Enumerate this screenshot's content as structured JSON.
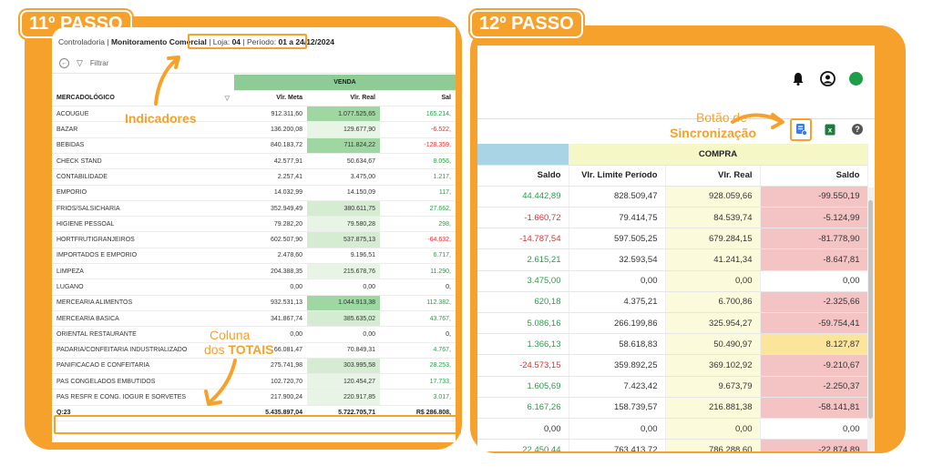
{
  "left": {
    "step_label": "11º PASSO",
    "breadcrumb": {
      "section": "Controladoria",
      "sep": " | ",
      "module": "Monitoramento Comercial",
      "store_label": "Loja: ",
      "store_value": "04",
      "period_label": "Período: ",
      "period_value": "01 a 24/12/2024"
    },
    "filter_label": "Filtrar",
    "group_header": "VENDA",
    "columns": [
      "MERCADOLÓGICO",
      "Vlr. Meta",
      "Vlr. Real",
      "Sal"
    ],
    "rows": [
      {
        "name": "ACOUGUE",
        "meta": "912.311,60",
        "real": "1.077.525,65",
        "saldo": "165.214,",
        "real_shade": 1,
        "saldo_color": "green"
      },
      {
        "name": "BAZAR",
        "meta": "136.200,08",
        "real": "129.677,90",
        "saldo": "-6.522,",
        "real_shade": 3,
        "saldo_color": "red"
      },
      {
        "name": "BEBIDAS",
        "meta": "840.183,72",
        "real": "711.824,22",
        "saldo": "-128.359,",
        "real_shade": 1,
        "saldo_color": "red"
      },
      {
        "name": "CHECK STAND",
        "meta": "42.577,91",
        "real": "50.634,67",
        "saldo": "8.056,",
        "real_shade": 0,
        "saldo_color": "green"
      },
      {
        "name": "CONTABILIDADE",
        "meta": "2.257,41",
        "real": "3.475,00",
        "saldo": "1.217,",
        "real_shade": 0,
        "saldo_color": "green"
      },
      {
        "name": "EMPORIO",
        "meta": "14.032,99",
        "real": "14.150,09",
        "saldo": "117,",
        "real_shade": 0,
        "saldo_color": "green"
      },
      {
        "name": "FRIOS/SALSICHARIA",
        "meta": "352.949,49",
        "real": "380.611,75",
        "saldo": "27.662,",
        "real_shade": 2,
        "saldo_color": "green"
      },
      {
        "name": "HIGIENE PESSOAL",
        "meta": "79.282,20",
        "real": "79.580,28",
        "saldo": "298,",
        "real_shade": 3,
        "saldo_color": "green"
      },
      {
        "name": "HORTFRUTIGRANJEIROS",
        "meta": "602.507,90",
        "real": "537.875,13",
        "saldo": "-64.632,",
        "real_shade": 2,
        "saldo_color": "red"
      },
      {
        "name": "IMPORTADOS E EMPORIO",
        "meta": "2.478,60",
        "real": "9.196,51",
        "saldo": "6.717,",
        "real_shade": 0,
        "saldo_color": "green"
      },
      {
        "name": "LIMPEZA",
        "meta": "204.388,35",
        "real": "215.678,76",
        "saldo": "11.290,",
        "real_shade": 3,
        "saldo_color": "green"
      },
      {
        "name": "LUGANO",
        "meta": "0,00",
        "real": "0,00",
        "saldo": "0,",
        "real_shade": 0,
        "saldo_color": "none"
      },
      {
        "name": "MERCEARIA ALIMENTOS",
        "meta": "932.531,13",
        "real": "1.044.913,38",
        "saldo": "112.382,",
        "real_shade": 1,
        "saldo_color": "green"
      },
      {
        "name": "MERCEARIA BASICA",
        "meta": "341.867,74",
        "real": "385.635,02",
        "saldo": "43.767,",
        "real_shade": 2,
        "saldo_color": "green"
      },
      {
        "name": "ORIENTAL RESTAURANTE",
        "meta": "0,00",
        "real": "0,00",
        "saldo": "0,",
        "real_shade": 0,
        "saldo_color": "none"
      },
      {
        "name": "PADARIA/CONFEITARIA INDUSTRIALIZADO",
        "meta": "66.081,47",
        "real": "70.849,31",
        "saldo": "4.767,",
        "real_shade": 0,
        "saldo_color": "green"
      },
      {
        "name": "PANIFICACAO E CONFEITARIA",
        "meta": "275.741,98",
        "real": "303.995,58",
        "saldo": "28.253,",
        "real_shade": 2,
        "saldo_color": "green"
      },
      {
        "name": "PAS CONGELADOS EMBUTIDOS",
        "meta": "102.720,70",
        "real": "120.454,27",
        "saldo": "17.733,",
        "real_shade": 3,
        "saldo_color": "green"
      },
      {
        "name": "PAS RESFR E CONG. IOGUR E SORVETES",
        "meta": "217.900,24",
        "real": "220.917,85",
        "saldo": "3.017,",
        "real_shade": 3,
        "saldo_color": "green"
      }
    ],
    "total": {
      "label": "Q:23",
      "meta": "5.435.897,04",
      "real": "5.722.705,71",
      "saldo": "R$ 286.808,"
    },
    "annotations": {
      "indicadores": "Indicadores",
      "coluna_line1": "Coluna",
      "coluna_line2_pre": "dos ",
      "coluna_line2_bold": "TOTAIS"
    }
  },
  "right": {
    "step_label": "12º PASSO",
    "annotation_line1": "Botão de",
    "annotation_line2": "Sincronização",
    "group_header": "COMPRA",
    "columns": [
      "Saldo",
      "Vlr. Limite Período",
      "Vlr. Real",
      "Saldo"
    ],
    "rows": [
      {
        "saldo_venda": "44.442,89",
        "sv_color": "green",
        "limite": "828.509,47",
        "real": "928.059,66",
        "saldo": "-99.550,19",
        "s_bg": "pink"
      },
      {
        "saldo_venda": "-1.660,72",
        "sv_color": "red",
        "limite": "79.414,75",
        "real": "84.539,74",
        "saldo": "-5.124,99",
        "s_bg": "pink"
      },
      {
        "saldo_venda": "-14.787,54",
        "sv_color": "red",
        "limite": "597.505,25",
        "real": "679.284,15",
        "saldo": "-81.778,90",
        "s_bg": "pink"
      },
      {
        "saldo_venda": "2.615,21",
        "sv_color": "green",
        "limite": "32.593,54",
        "real": "41.241,34",
        "saldo": "-8.647,81",
        "s_bg": "pink"
      },
      {
        "saldo_venda": "3.475,00",
        "sv_color": "green",
        "limite": "0,00",
        "real": "0,00",
        "saldo": "0,00",
        "s_bg": "none"
      },
      {
        "saldo_venda": "620,18",
        "sv_color": "green",
        "limite": "4.375,21",
        "real": "6.700,86",
        "saldo": "-2.325,66",
        "s_bg": "pink"
      },
      {
        "saldo_venda": "5.086,16",
        "sv_color": "green",
        "limite": "266.199,86",
        "real": "325.954,27",
        "saldo": "-59.754,41",
        "s_bg": "pink"
      },
      {
        "saldo_venda": "1.366,13",
        "sv_color": "green",
        "limite": "58.618,83",
        "real": "50.490,97",
        "saldo": "8.127,87",
        "s_bg": "yellow"
      },
      {
        "saldo_venda": "-24.573,15",
        "sv_color": "red",
        "limite": "359.892,25",
        "real": "369.102,92",
        "saldo": "-9.210,67",
        "s_bg": "pink"
      },
      {
        "saldo_venda": "1.605,69",
        "sv_color": "green",
        "limite": "7.423,42",
        "real": "9.673,79",
        "saldo": "-2.250,37",
        "s_bg": "pink"
      },
      {
        "saldo_venda": "6.167,26",
        "sv_color": "green",
        "limite": "158.739,57",
        "real": "216.881,38",
        "saldo": "-58.141,81",
        "s_bg": "pink"
      },
      {
        "saldo_venda": "0,00",
        "sv_color": "none",
        "limite": "0,00",
        "real": "0,00",
        "saldo": "0,00",
        "s_bg": "none"
      },
      {
        "saldo_venda": "22.450,44",
        "sv_color": "green",
        "limite": "763.413,72",
        "real": "786.288,60",
        "saldo": "-22.874,89",
        "s_bg": "pink"
      }
    ],
    "icons": [
      "bell-icon",
      "user-circle-icon",
      "status-dot-icon",
      "sync-icon",
      "excel-icon",
      "help-icon"
    ],
    "status_dot_color": "#1e9e4a"
  },
  "colors": {
    "accent": "#f7a12d",
    "venda_header": "#8fcb95",
    "compra_header": "#f6f7c6",
    "saldo_header": "#a8d4e6"
  }
}
